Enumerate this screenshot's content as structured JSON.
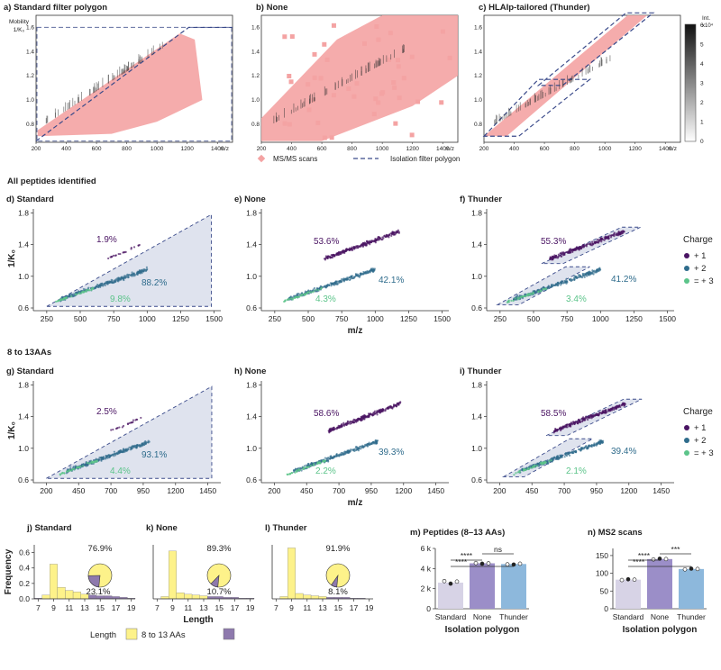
{
  "colors": {
    "msms": "#f4a3a3",
    "polygon_line": "#3a4a8a",
    "polygon_fill": "#dfe3ee",
    "charge1": "#4a1463",
    "charge2": "#2f6c8c",
    "charge3": "#5cc48a",
    "len_8_13": "#fdf28a",
    "len_other": "#8e79ad",
    "bar_standard": "#d7d3e6",
    "bar_none": "#9b8ec8",
    "bar_thunder": "#8db8dc"
  },
  "row1": {
    "panels": [
      {
        "label": "a) Standard filter polygon"
      },
      {
        "label": "b) None"
      },
      {
        "label": "c) HLAIp-tailored (Thunder)"
      }
    ],
    "ylabel_line1": "Mobility",
    "ylabel_line2": "1/K₀",
    "xunit": "m/z",
    "x_ticks": [
      "200",
      "400",
      "600",
      "800",
      "1000",
      "1200",
      "1400"
    ],
    "y_ticks": [
      "0.8",
      "1.0",
      "1.2",
      "1.4",
      "1.6"
    ],
    "legend_msms": "MS/MS scans",
    "legend_polygon": "Isolation filter polygon",
    "colorbar": {
      "label": "Int.",
      "exp": "x10⁴",
      "ticks": [
        "0",
        "1",
        "2",
        "3",
        "4",
        "5",
        "6"
      ]
    }
  },
  "section_all": "All peptides identified",
  "section_813": "8 to 13AAs",
  "scatter_common": {
    "ylabel": "1/K₀",
    "xlabel": "m/z",
    "y_ticks": [
      "0.6",
      "1.0",
      "1.4",
      "1.8"
    ],
    "legend_title": "Charge",
    "legend_items": [
      "+ 1",
      "+ 2",
      "= + 3"
    ]
  },
  "chart_data": [
    {
      "id": "d",
      "type": "scatter",
      "title": "d) Standard",
      "x_ticks": [
        "250",
        "500",
        "750",
        "1000",
        "1250",
        "1500"
      ],
      "xlim": [
        150,
        1550
      ],
      "ylim": [
        0.6,
        1.85
      ],
      "percentages": {
        "charge1": "1.9%",
        "charge2": "88.2%",
        "charge3": "9.8%"
      }
    },
    {
      "id": "e",
      "type": "scatter",
      "title": "e) None",
      "x_ticks": [
        "250",
        "500",
        "750",
        "1000",
        "1250",
        "1500"
      ],
      "xlim": [
        150,
        1550
      ],
      "ylim": [
        0.6,
        1.85
      ],
      "percentages": {
        "charge1": "53.6%",
        "charge2": "42.1%",
        "charge3": "4.3%"
      }
    },
    {
      "id": "f",
      "type": "scatter",
      "title": "f) Thunder",
      "x_ticks": [
        "250",
        "500",
        "750",
        "1000",
        "1250",
        "1500"
      ],
      "xlim": [
        150,
        1550
      ],
      "ylim": [
        0.6,
        1.85
      ],
      "percentages": {
        "charge1": "55.3%",
        "charge2": "41.2%",
        "charge3": "3.4%"
      }
    },
    {
      "id": "g",
      "type": "scatter",
      "title": "g) Standard",
      "x_ticks": [
        "200",
        "450",
        "700",
        "950",
        "1200",
        "1450"
      ],
      "xlim": [
        100,
        1550
      ],
      "ylim": [
        0.6,
        1.85
      ],
      "percentages": {
        "charge1": "2.5%",
        "charge2": "93.1%",
        "charge3": "4.4%"
      }
    },
    {
      "id": "h",
      "type": "scatter",
      "title": "h) None",
      "x_ticks": [
        "200",
        "450",
        "700",
        "950",
        "1200",
        "1450"
      ],
      "xlim": [
        100,
        1550
      ],
      "ylim": [
        0.6,
        1.85
      ],
      "percentages": {
        "charge1": "58.6%",
        "charge2": "39.3%",
        "charge3": "2.2%"
      }
    },
    {
      "id": "i",
      "type": "scatter",
      "title": "i) Thunder",
      "x_ticks": [
        "200",
        "450",
        "700",
        "950",
        "1200",
        "1450"
      ],
      "xlim": [
        100,
        1550
      ],
      "ylim": [
        0.6,
        1.85
      ],
      "percentages": {
        "charge1": "58.5%",
        "charge2": "39.4%",
        "charge3": "2.1%"
      }
    },
    {
      "id": "j",
      "type": "bar",
      "title": "j) Standard",
      "categories": [
        7,
        8,
        9,
        10,
        11,
        12,
        13,
        14,
        15,
        16,
        17,
        18,
        19
      ],
      "values": [
        0.01,
        0.05,
        0.45,
        0.15,
        0.11,
        0.09,
        0.06,
        0.05,
        0.04,
        0.04,
        0.03,
        0.02,
        0.01
      ],
      "ylim": [
        0,
        0.7
      ],
      "pie": {
        "values": [
          76.9,
          23.1
        ],
        "labels": [
          "76.9%",
          "23.1%"
        ]
      }
    },
    {
      "id": "k",
      "type": "bar",
      "title": "k) None",
      "categories": [
        7,
        8,
        9,
        10,
        11,
        12,
        13,
        14,
        15,
        16,
        17,
        18,
        19
      ],
      "values": [
        0.0,
        0.03,
        0.62,
        0.08,
        0.06,
        0.05,
        0.04,
        0.03,
        0.03,
        0.02,
        0.02,
        0.01,
        0.01
      ],
      "ylim": [
        0,
        0.7
      ],
      "pie": {
        "values": [
          89.3,
          10.7
        ],
        "labels": [
          "89.3%",
          "10.7%"
        ]
      }
    },
    {
      "id": "l",
      "type": "bar",
      "title": "l) Thunder",
      "categories": [
        7,
        8,
        9,
        10,
        11,
        12,
        13,
        14,
        15,
        16,
        17,
        18,
        19
      ],
      "values": [
        0.0,
        0.03,
        0.66,
        0.07,
        0.05,
        0.04,
        0.03,
        0.02,
        0.02,
        0.02,
        0.01,
        0.01,
        0.0
      ],
      "ylim": [
        0,
        0.7
      ],
      "pie": {
        "values": [
          91.9,
          8.1
        ],
        "labels": [
          "91.9%",
          "8.1%"
        ]
      }
    },
    {
      "id": "m",
      "type": "bar",
      "title": "m) Peptides (8–13 AAs)",
      "categories": [
        "Standard",
        "None",
        "Thunder"
      ],
      "values": [
        2600,
        4520,
        4450
      ],
      "ylim": [
        0,
        6000
      ],
      "y_ticks": [
        "0",
        "2 k",
        "4 k",
        "6 k"
      ],
      "points": [
        [
          2750,
          2500,
          2700
        ],
        [
          4550,
          4480,
          4520
        ],
        [
          4420,
          4400,
          4480
        ]
      ],
      "significance": [
        {
          "pair": [
            "Standard",
            "None"
          ],
          "label": "****"
        },
        {
          "pair": [
            "None",
            "Thunder"
          ],
          "label": "ns"
        },
        {
          "pair": [
            "Standard",
            "Thunder"
          ],
          "label": "****"
        }
      ]
    },
    {
      "id": "n",
      "type": "bar",
      "title": "n) MS2 scans",
      "categories": [
        "Standard",
        "None",
        "Thunder"
      ],
      "values": [
        82,
        140,
        112
      ],
      "ylim": [
        0,
        170
      ],
      "y_ticks": [
        "0",
        "50",
        "100",
        "150"
      ],
      "points": [
        [
          81,
          83,
          82
        ],
        [
          139,
          141,
          140
        ],
        [
          111,
          113,
          112
        ]
      ],
      "significance": [
        {
          "pair": [
            "Standard",
            "None"
          ],
          "label": "****"
        },
        {
          "pair": [
            "None",
            "Thunder"
          ],
          "label": "***"
        },
        {
          "pair": [
            "Standard",
            "Thunder"
          ],
          "label": "****"
        }
      ]
    }
  ],
  "hist_common": {
    "ylabel": "Frequency",
    "xlabel": "Length",
    "x_ticks": [
      "7",
      "9",
      "11",
      "13",
      "15",
      "17",
      "19"
    ],
    "y_ticks": [
      "0.0",
      "0.2",
      "0.4",
      "0.6"
    ]
  },
  "bar_common": {
    "xlabel": "Isolation polygon"
  },
  "length_legend": {
    "title": "Length",
    "item1": "8 to 13 AAs"
  }
}
